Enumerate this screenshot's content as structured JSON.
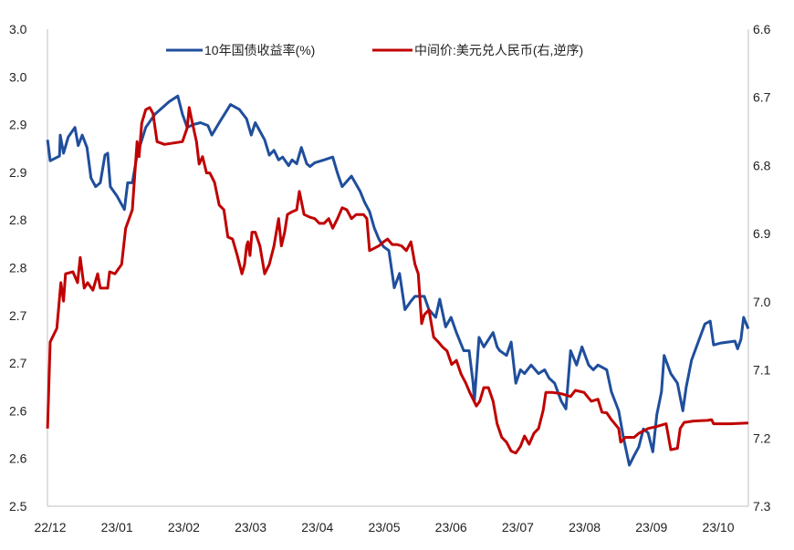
{
  "chart_data": {
    "type": "line",
    "title": "",
    "x_tick_labels": [
      "22/12",
      "23/01",
      "23/02",
      "23/03",
      "23/04",
      "23/05",
      "23/06",
      "23/07",
      "23/08",
      "23/09",
      "23/10"
    ],
    "x_unit": "months since 2022-12",
    "left_axis": {
      "ylim": [
        2.5,
        3.0
      ],
      "tick_labels": [
        "3.0",
        "3.0",
        "2.9",
        "2.9",
        "2.8",
        "2.8",
        "2.7",
        "2.7",
        "2.6",
        "2.6",
        "2.5"
      ]
    },
    "right_axis": {
      "ylim": [
        6.6,
        7.3
      ],
      "inverted": true,
      "tick_labels": [
        "6.6",
        "6.7",
        "6.8",
        "6.9",
        "7.0",
        "7.1",
        "7.2",
        "7.3"
      ]
    },
    "legend_position": "top",
    "series": [
      {
        "name": "10年国债收益率(%)",
        "axis": "left",
        "color": "#1F4E9C",
        "points": [
          [
            -0.04,
            2.884
          ],
          [
            0,
            2.862
          ],
          [
            0.14,
            2.867
          ],
          [
            0.15,
            2.889
          ],
          [
            0.2,
            2.87
          ],
          [
            0.27,
            2.887
          ],
          [
            0.37,
            2.897
          ],
          [
            0.42,
            2.878
          ],
          [
            0.48,
            2.889
          ],
          [
            0.55,
            2.876
          ],
          [
            0.61,
            2.844
          ],
          [
            0.68,
            2.835
          ],
          [
            0.75,
            2.839
          ],
          [
            0.82,
            2.868
          ],
          [
            0.86,
            2.87
          ],
          [
            0.9,
            2.835
          ],
          [
            1.0,
            2.825
          ],
          [
            1.11,
            2.811
          ],
          [
            1.16,
            2.839
          ],
          [
            1.23,
            2.839
          ],
          [
            1.3,
            2.868
          ],
          [
            1.43,
            2.897
          ],
          [
            1.57,
            2.911
          ],
          [
            1.78,
            2.924
          ],
          [
            1.91,
            2.93
          ],
          [
            1.98,
            2.911
          ],
          [
            2.05,
            2.897
          ],
          [
            2.14,
            2.9
          ],
          [
            2.25,
            2.902
          ],
          [
            2.36,
            2.899
          ],
          [
            2.42,
            2.889
          ],
          [
            2.53,
            2.902
          ],
          [
            2.7,
            2.921
          ],
          [
            2.83,
            2.916
          ],
          [
            2.94,
            2.906
          ],
          [
            3.01,
            2.889
          ],
          [
            3.07,
            2.902
          ],
          [
            3.21,
            2.884
          ],
          [
            3.28,
            2.868
          ],
          [
            3.35,
            2.873
          ],
          [
            3.42,
            2.863
          ],
          [
            3.48,
            2.866
          ],
          [
            3.57,
            2.857
          ],
          [
            3.62,
            2.863
          ],
          [
            3.69,
            2.859
          ],
          [
            3.76,
            2.876
          ],
          [
            3.84,
            2.859
          ],
          [
            3.89,
            2.856
          ],
          [
            3.96,
            2.86
          ],
          [
            4.1,
            2.863
          ],
          [
            4.23,
            2.866
          ],
          [
            4.3,
            2.849
          ],
          [
            4.37,
            2.835
          ],
          [
            4.51,
            2.846
          ],
          [
            4.64,
            2.83
          ],
          [
            4.71,
            2.818
          ],
          [
            4.78,
            2.809
          ],
          [
            4.85,
            2.792
          ],
          [
            4.92,
            2.78
          ],
          [
            4.99,
            2.772
          ],
          [
            5.07,
            2.768
          ],
          [
            5.15,
            2.729
          ],
          [
            5.23,
            2.744
          ],
          [
            5.31,
            2.706
          ],
          [
            5.4,
            2.715
          ],
          [
            5.46,
            2.72
          ],
          [
            5.6,
            2.72
          ],
          [
            5.67,
            2.706
          ],
          [
            5.77,
            2.698
          ],
          [
            5.83,
            2.717
          ],
          [
            5.92,
            2.688
          ],
          [
            6.0,
            2.698
          ],
          [
            6.08,
            2.682
          ],
          [
            6.19,
            2.663
          ],
          [
            6.27,
            2.663
          ],
          [
            6.33,
            2.629
          ],
          [
            6.35,
            2.61
          ],
          [
            6.42,
            2.677
          ],
          [
            6.49,
            2.667
          ],
          [
            6.63,
            2.682
          ],
          [
            6.69,
            2.667
          ],
          [
            6.73,
            2.663
          ],
          [
            6.83,
            2.658
          ],
          [
            6.9,
            2.672
          ],
          [
            6.97,
            2.629
          ],
          [
            7.04,
            2.643
          ],
          [
            7.1,
            2.639
          ],
          [
            7.2,
            2.648
          ],
          [
            7.31,
            2.639
          ],
          [
            7.4,
            2.643
          ],
          [
            7.47,
            2.634
          ],
          [
            7.55,
            2.629
          ],
          [
            7.65,
            2.61
          ],
          [
            7.72,
            2.602
          ],
          [
            7.79,
            2.663
          ],
          [
            7.88,
            2.648
          ],
          [
            7.96,
            2.667
          ],
          [
            8.06,
            2.648
          ],
          [
            8.13,
            2.643
          ],
          [
            8.2,
            2.648
          ],
          [
            8.33,
            2.643
          ],
          [
            8.4,
            2.62
          ],
          [
            8.51,
            2.6
          ],
          [
            8.58,
            2.572
          ],
          [
            8.67,
            2.543
          ],
          [
            8.74,
            2.553
          ],
          [
            8.81,
            2.562
          ],
          [
            8.88,
            2.581
          ],
          [
            8.95,
            2.577
          ],
          [
            9.02,
            2.557
          ],
          [
            9.08,
            2.596
          ],
          [
            9.15,
            2.62
          ],
          [
            9.19,
            2.658
          ],
          [
            9.29,
            2.639
          ],
          [
            9.39,
            2.629
          ],
          [
            9.47,
            2.6
          ],
          [
            9.52,
            2.625
          ],
          [
            9.6,
            2.653
          ],
          [
            9.7,
            2.672
          ],
          [
            9.8,
            2.691
          ],
          [
            9.88,
            2.694
          ],
          [
            9.93,
            2.669
          ],
          [
            10.04,
            2.671
          ],
          [
            10.25,
            2.673
          ],
          [
            10.29,
            2.665
          ],
          [
            10.34,
            2.675
          ],
          [
            10.38,
            2.698
          ],
          [
            10.45,
            2.686
          ]
        ]
      },
      {
        "name": "中间价:美元兑人民币(右,逆序)",
        "axis": "right",
        "color": "#C00000",
        "points": [
          [
            -0.04,
            7.186
          ],
          [
            0,
            7.059
          ],
          [
            0.1,
            7.039
          ],
          [
            0.16,
            6.972
          ],
          [
            0.2,
            6.999
          ],
          [
            0.23,
            6.959
          ],
          [
            0.34,
            6.956
          ],
          [
            0.41,
            6.972
          ],
          [
            0.45,
            6.935
          ],
          [
            0.51,
            6.98
          ],
          [
            0.56,
            6.972
          ],
          [
            0.64,
            6.983
          ],
          [
            0.71,
            6.959
          ],
          [
            0.75,
            6.98
          ],
          [
            0.86,
            6.98
          ],
          [
            0.89,
            6.956
          ],
          [
            0.97,
            6.959
          ],
          [
            1.07,
            6.945
          ],
          [
            1.13,
            6.892
          ],
          [
            1.23,
            6.865
          ],
          [
            1.3,
            6.765
          ],
          [
            1.33,
            6.787
          ],
          [
            1.37,
            6.738
          ],
          [
            1.43,
            6.718
          ],
          [
            1.49,
            6.715
          ],
          [
            1.54,
            6.724
          ],
          [
            1.6,
            6.765
          ],
          [
            1.71,
            6.769
          ],
          [
            1.98,
            6.765
          ],
          [
            2.05,
            6.745
          ],
          [
            2.08,
            6.715
          ],
          [
            2.12,
            6.734
          ],
          [
            2.19,
            6.765
          ],
          [
            2.23,
            6.798
          ],
          [
            2.28,
            6.787
          ],
          [
            2.34,
            6.811
          ],
          [
            2.39,
            6.811
          ],
          [
            2.46,
            6.825
          ],
          [
            2.53,
            6.858
          ],
          [
            2.6,
            6.865
          ],
          [
            2.66,
            6.905
          ],
          [
            2.73,
            6.908
          ],
          [
            2.8,
            6.932
          ],
          [
            2.87,
            6.959
          ],
          [
            2.91,
            6.945
          ],
          [
            2.94,
            6.918
          ],
          [
            2.96,
            6.912
          ],
          [
            2.99,
            6.932
          ],
          [
            3.02,
            6.898
          ],
          [
            3.07,
            6.898
          ],
          [
            3.14,
            6.918
          ],
          [
            3.21,
            6.959
          ],
          [
            3.28,
            6.945
          ],
          [
            3.35,
            6.918
          ],
          [
            3.42,
            6.878
          ],
          [
            3.46,
            6.918
          ],
          [
            3.51,
            6.898
          ],
          [
            3.55,
            6.872
          ],
          [
            3.62,
            6.868
          ],
          [
            3.69,
            6.865
          ],
          [
            3.73,
            6.838
          ],
          [
            3.8,
            6.872
          ],
          [
            3.89,
            6.876
          ],
          [
            3.96,
            6.878
          ],
          [
            4.03,
            6.885
          ],
          [
            4.1,
            6.885
          ],
          [
            4.17,
            6.878
          ],
          [
            4.23,
            6.892
          ],
          [
            4.3,
            6.878
          ],
          [
            4.37,
            6.862
          ],
          [
            4.44,
            6.865
          ],
          [
            4.51,
            6.878
          ],
          [
            4.58,
            6.872
          ],
          [
            4.69,
            6.872
          ],
          [
            4.74,
            6.878
          ],
          [
            4.78,
            6.925
          ],
          [
            4.92,
            6.918
          ],
          [
            4.99,
            6.912
          ],
          [
            5.05,
            6.908
          ],
          [
            5.12,
            6.916
          ],
          [
            5.19,
            6.916
          ],
          [
            5.26,
            6.918
          ],
          [
            5.33,
            6.925
          ],
          [
            5.4,
            6.912
          ],
          [
            5.46,
            6.945
          ],
          [
            5.51,
            6.959
          ],
          [
            5.56,
            7.032
          ],
          [
            5.6,
            7.019
          ],
          [
            5.67,
            7.012
          ],
          [
            5.74,
            7.052
          ],
          [
            5.81,
            7.059
          ],
          [
            5.87,
            7.066
          ],
          [
            5.94,
            7.072
          ],
          [
            6.01,
            7.092
          ],
          [
            6.08,
            7.086
          ],
          [
            6.15,
            7.106
          ],
          [
            6.22,
            7.119
          ],
          [
            6.28,
            7.133
          ],
          [
            6.38,
            7.153
          ],
          [
            6.43,
            7.146
          ],
          [
            6.49,
            7.126
          ],
          [
            6.56,
            7.126
          ],
          [
            6.63,
            7.146
          ],
          [
            6.69,
            7.179
          ],
          [
            6.76,
            7.199
          ],
          [
            6.83,
            7.206
          ],
          [
            6.9,
            7.219
          ],
          [
            6.97,
            7.222
          ],
          [
            7.04,
            7.212
          ],
          [
            7.1,
            7.197
          ],
          [
            7.17,
            7.209
          ],
          [
            7.24,
            7.193
          ],
          [
            7.31,
            7.186
          ],
          [
            7.38,
            7.159
          ],
          [
            7.42,
            7.133
          ],
          [
            7.51,
            7.133
          ],
          [
            7.65,
            7.135
          ],
          [
            7.79,
            7.139
          ],
          [
            7.86,
            7.13
          ],
          [
            7.99,
            7.133
          ],
          [
            8.1,
            7.146
          ],
          [
            8.2,
            7.143
          ],
          [
            8.26,
            7.162
          ],
          [
            8.33,
            7.163
          ],
          [
            8.4,
            7.173
          ],
          [
            8.51,
            7.186
          ],
          [
            8.54,
            7.206
          ],
          [
            8.61,
            7.199
          ],
          [
            8.74,
            7.199
          ],
          [
            8.81,
            7.193
          ],
          [
            8.95,
            7.186
          ],
          [
            9.08,
            7.183
          ],
          [
            9.22,
            7.179
          ],
          [
            9.29,
            7.217
          ],
          [
            9.39,
            7.215
          ],
          [
            9.43,
            7.186
          ],
          [
            9.49,
            7.177
          ],
          [
            9.63,
            7.175
          ],
          [
            9.84,
            7.174
          ],
          [
            9.9,
            7.173
          ],
          [
            9.93,
            7.179
          ],
          [
            10.18,
            7.179
          ],
          [
            10.45,
            7.178
          ]
        ]
      }
    ]
  }
}
